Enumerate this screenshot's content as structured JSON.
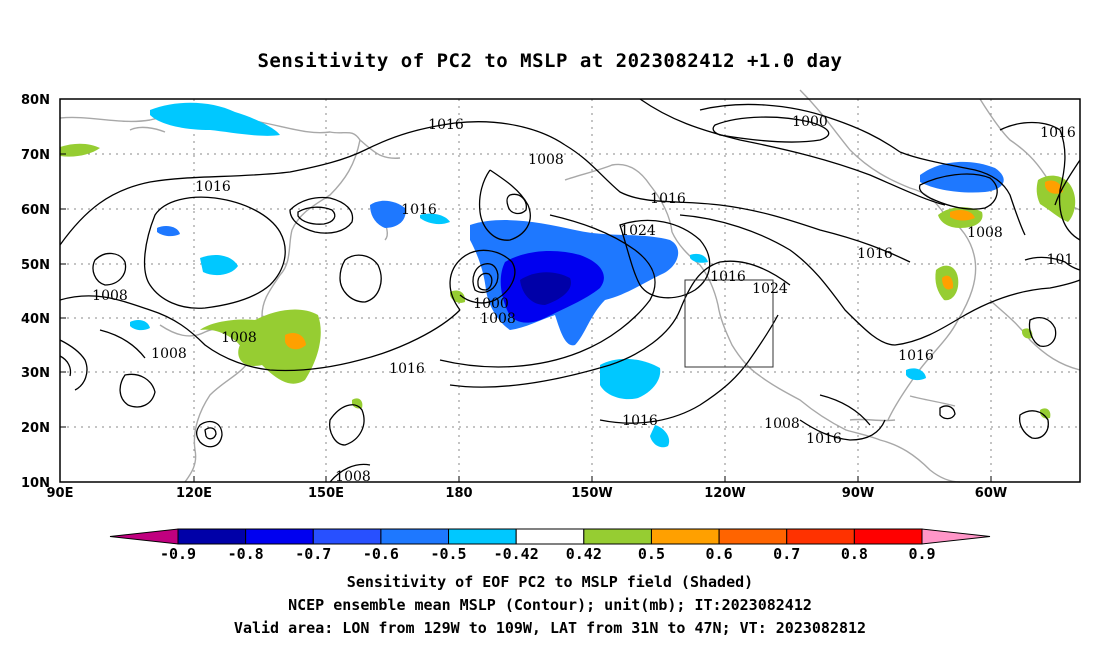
{
  "title": "Sensitivity of PC2 to MSLP at 2023082412 +1.0 day",
  "lat_labels": [
    "80N",
    "70N",
    "60N",
    "50N",
    "40N",
    "30N",
    "20N",
    "10N"
  ],
  "lon_labels": [
    "90E",
    "120E",
    "150E",
    "180",
    "150W",
    "120W",
    "90W",
    "60W"
  ],
  "contour_labels": [
    "1016",
    "1000",
    "1016",
    "1008",
    "1016",
    "1008",
    "1016",
    "1024",
    "1016",
    "1008",
    "1016",
    "1016",
    "1024",
    "1016",
    "1000",
    "1008",
    "1008",
    "1008",
    "1016",
    "1016",
    "1008",
    "1016",
    "1016",
    "1008",
    "1016",
    "101"
  ],
  "colorbar": {
    "labels": [
      "-0.9",
      "-0.8",
      "-0.7",
      "-0.6",
      "-0.5",
      "-0.42",
      "0.42",
      "0.5",
      "0.6",
      "0.7",
      "0.8",
      "0.9"
    ],
    "colors": [
      "#c0007f",
      "#0000a8",
      "#0000f0",
      "#2850ff",
      "#1e78ff",
      "#00c8ff",
      "#ffffff",
      "#96cd32",
      "#ffa000",
      "#ff6400",
      "#ff3200",
      "#ff0000",
      "#ff96c8"
    ]
  },
  "footer": {
    "line1": "Sensitivity of EOF PC2 to MSLP field (Shaded)",
    "line2": "NCEP ensemble mean MSLP (Contour); unit(mb); IT:2023082412",
    "line3": "Valid area: LON from 129W to 109W, LAT from 31N to 47N; VT: 2023082812"
  }
}
